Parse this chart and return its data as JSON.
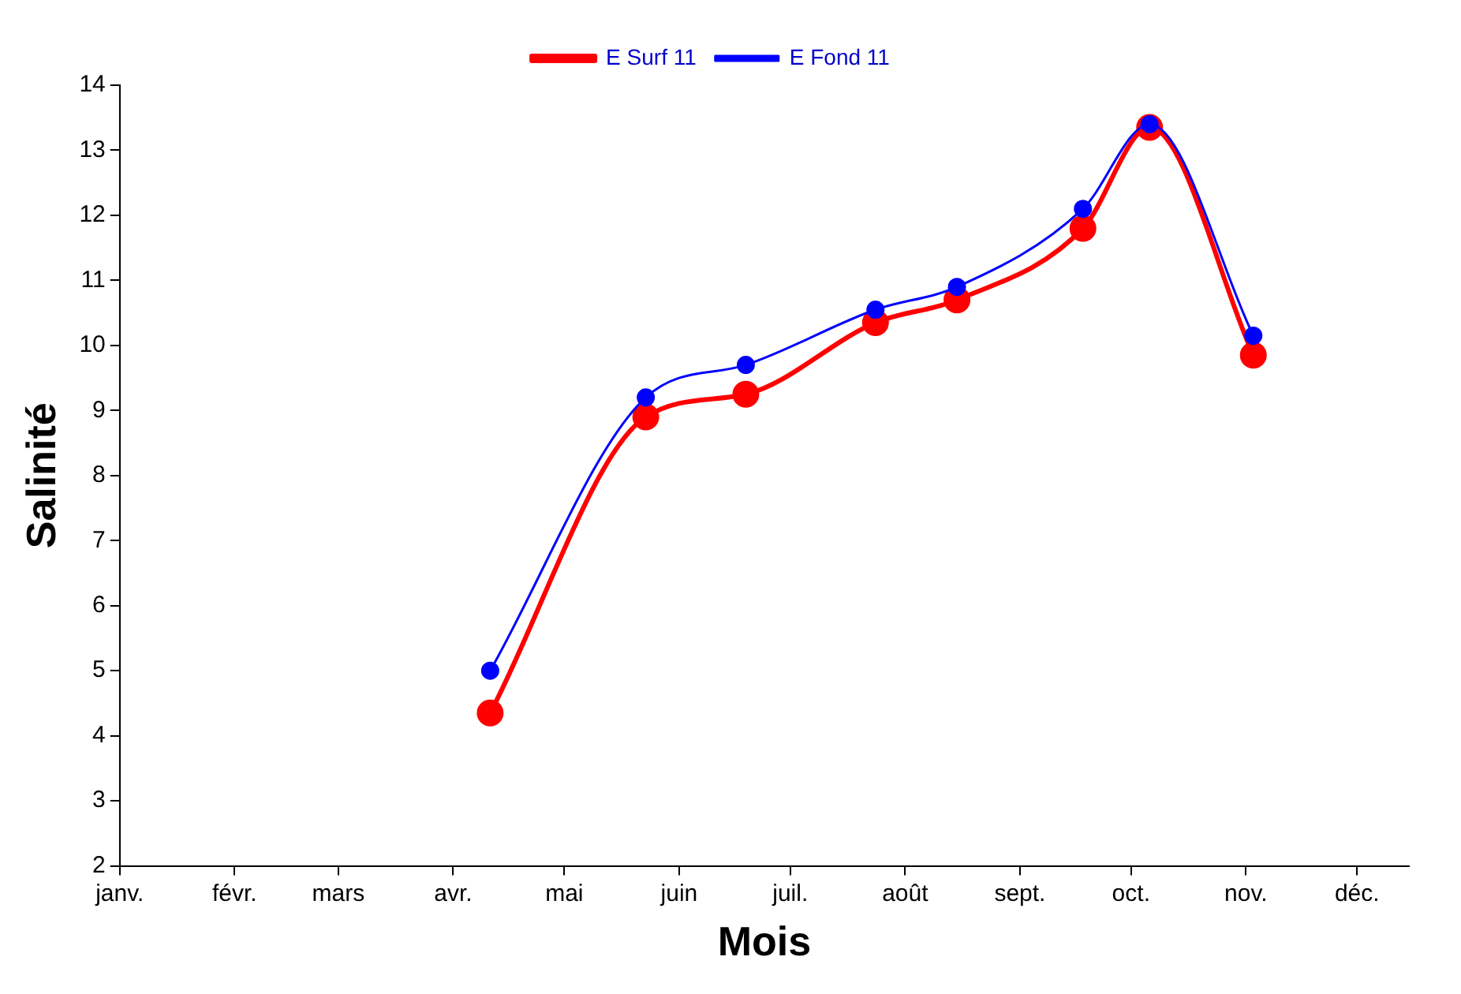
{
  "chart_data": {
    "type": "line",
    "xlabel": "Mois",
    "ylabel": "Salinité",
    "x": [
      "--04-11",
      "--05-23",
      "--06-19",
      "--07-24",
      "--08-15",
      "--09-18",
      "--10-06",
      "--11-03"
    ],
    "series": [
      {
        "name": "E Surf 11",
        "color": "#ff0000",
        "values": [
          4.35,
          8.9,
          9.25,
          10.35,
          10.7,
          11.8,
          13.35,
          9.85
        ]
      },
      {
        "name": "E Fond 11",
        "color": "#0000ff",
        "values": [
          5.0,
          9.2,
          9.7,
          10.55,
          10.9,
          12.1,
          13.4,
          10.15
        ]
      }
    ],
    "xlim": [
      "--01-01",
      "--12-15"
    ],
    "xticks": [
      {
        "value": "--01-01",
        "label": "janv."
      },
      {
        "value": "--02-01",
        "label": "févr."
      },
      {
        "value": "--03-01",
        "label": "mars"
      },
      {
        "value": "--04-01",
        "label": "avr."
      },
      {
        "value": "--05-01",
        "label": "mai"
      },
      {
        "value": "--06-01",
        "label": "juin"
      },
      {
        "value": "--07-01",
        "label": "juil."
      },
      {
        "value": "--08-01",
        "label": "août"
      },
      {
        "value": "--09-01",
        "label": "sept."
      },
      {
        "value": "--10-01",
        "label": "oct."
      },
      {
        "value": "--11-01",
        "label": "nov."
      },
      {
        "value": "--12-01",
        "label": "déc."
      }
    ],
    "ylim": [
      2,
      14
    ],
    "yticks": [
      2,
      3,
      4,
      5,
      6,
      7,
      8,
      9,
      10,
      11,
      12,
      13,
      14
    ],
    "grid": false,
    "legend": "top",
    "marker": "circle",
    "line_style": "solid"
  }
}
